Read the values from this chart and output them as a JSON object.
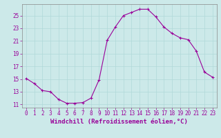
{
  "x": [
    0,
    1,
    2,
    3,
    4,
    5,
    6,
    7,
    8,
    9,
    10,
    11,
    12,
    13,
    14,
    15,
    16,
    17,
    18,
    19,
    20,
    21,
    22,
    23
  ],
  "y": [
    15.1,
    14.3,
    13.2,
    13.0,
    11.8,
    11.2,
    11.2,
    11.3,
    12.0,
    14.9,
    21.1,
    23.2,
    25.0,
    25.5,
    26.0,
    26.0,
    24.8,
    23.2,
    22.2,
    21.5,
    21.2,
    19.4,
    16.1,
    15.3
  ],
  "line_color": "#990099",
  "marker": "+",
  "marker_size": 3,
  "marker_linewidth": 0.8,
  "linewidth": 0.8,
  "xlim": [
    -0.5,
    23.5
  ],
  "ylim": [
    10.5,
    26.8
  ],
  "yticks": [
    11,
    13,
    15,
    17,
    19,
    21,
    23,
    25
  ],
  "xticks": [
    0,
    1,
    2,
    3,
    4,
    5,
    6,
    7,
    8,
    9,
    10,
    11,
    12,
    13,
    14,
    15,
    16,
    17,
    18,
    19,
    20,
    21,
    22,
    23
  ],
  "xlabel": "Windchill (Refroidissement éolien,°C)",
  "bg_color": "#cce9e9",
  "grid_color": "#b0d8d8",
  "tick_color": "#990099",
  "label_color": "#990099",
  "tick_fontsize": 5.5,
  "xlabel_fontsize": 6.5
}
